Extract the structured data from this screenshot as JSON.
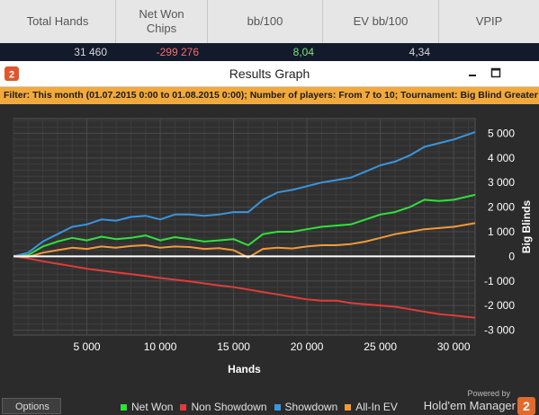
{
  "stats": {
    "headers": [
      {
        "label": "Total Hands"
      },
      {
        "label": "Net Won\nChips"
      },
      {
        "label": "bb/100"
      },
      {
        "label": "EV bb/100"
      },
      {
        "label": "VPIP"
      }
    ],
    "values": [
      {
        "text": "31 460",
        "color": "#d8d8d8"
      },
      {
        "text": "-299 276",
        "color": "#ff6a6a"
      },
      {
        "text": "8,04",
        "color": "#7fe07f"
      },
      {
        "text": "4,34",
        "color": "#d8d8d8"
      },
      {
        "text": "",
        "color": "#d8d8d8"
      }
    ]
  },
  "window": {
    "title": "Results Graph",
    "logo_icon": "holdem-manager-logo-icon",
    "minimize_icon": "minimize-icon",
    "maximize_icon": "maximize-icon"
  },
  "filter": {
    "label": "Filter:",
    "text": "This month (01.07.2015 0:00 to 01.08.2015 0:00); Number of players: From 7 to 10; Tournament: Big Blind Greater"
  },
  "chart_data": {
    "type": "line",
    "xlabel": "Hands",
    "ylabel": "Big Blinds",
    "xlim": [
      0,
      31460
    ],
    "ylim": [
      -3200,
      5600
    ],
    "x_ticks": [
      "5 000",
      "10 000",
      "15 000",
      "20 000",
      "25 000",
      "30 000"
    ],
    "x_tick_values": [
      5000,
      10000,
      15000,
      20000,
      25000,
      30000
    ],
    "y_ticks": [
      "5 000",
      "4 000",
      "3 000",
      "2 000",
      "1 000",
      "0",
      "-1 000",
      "-2 000",
      "-3 000"
    ],
    "y_tick_values": [
      5000,
      4000,
      3000,
      2000,
      1000,
      0,
      -1000,
      -2000,
      -3000
    ],
    "grid": true,
    "legend_position": "bottom",
    "series": [
      {
        "name": "Net Won",
        "color": "#2ee33a",
        "x": [
          0,
          1000,
          2000,
          3000,
          4000,
          5000,
          6000,
          7000,
          8000,
          9000,
          10000,
          11000,
          12000,
          13000,
          14000,
          15000,
          16000,
          17000,
          18000,
          19000,
          20000,
          21000,
          22000,
          23000,
          24000,
          25000,
          26000,
          27000,
          28000,
          29000,
          30000,
          31460
        ],
        "y": [
          0,
          50,
          400,
          600,
          750,
          650,
          800,
          700,
          750,
          850,
          650,
          780,
          700,
          600,
          650,
          700,
          450,
          900,
          1000,
          1000,
          1100,
          1200,
          1250,
          1300,
          1500,
          1700,
          1800,
          2000,
          2300,
          2250,
          2300,
          2500
        ]
      },
      {
        "name": "Non Showdown",
        "color": "#e23b3b",
        "x": [
          0,
          1000,
          2000,
          3000,
          4000,
          5000,
          6000,
          7000,
          8000,
          9000,
          10000,
          11000,
          12000,
          13000,
          14000,
          15000,
          16000,
          17000,
          18000,
          19000,
          20000,
          21000,
          22000,
          23000,
          24000,
          25000,
          26000,
          27000,
          28000,
          29000,
          30000,
          31460
        ],
        "y": [
          0,
          -80,
          -200,
          -300,
          -400,
          -500,
          -580,
          -650,
          -720,
          -800,
          -880,
          -950,
          -1020,
          -1100,
          -1180,
          -1250,
          -1350,
          -1450,
          -1550,
          -1650,
          -1750,
          -1800,
          -1800,
          -1900,
          -1950,
          -2000,
          -2050,
          -2150,
          -2250,
          -2350,
          -2400,
          -2500
        ]
      },
      {
        "name": "Showdown",
        "color": "#3a95e0",
        "x": [
          0,
          1000,
          2000,
          3000,
          4000,
          5000,
          6000,
          7000,
          8000,
          9000,
          10000,
          11000,
          12000,
          13000,
          14000,
          15000,
          16000,
          17000,
          18000,
          19000,
          20000,
          21000,
          22000,
          23000,
          24000,
          25000,
          26000,
          27000,
          28000,
          29000,
          30000,
          31460
        ],
        "y": [
          0,
          150,
          600,
          900,
          1200,
          1300,
          1500,
          1450,
          1600,
          1650,
          1500,
          1700,
          1700,
          1650,
          1700,
          1800,
          1800,
          2300,
          2600,
          2700,
          2850,
          3000,
          3100,
          3200,
          3450,
          3700,
          3850,
          4100,
          4450,
          4600,
          4750,
          5050
        ]
      },
      {
        "name": "All-In EV",
        "color": "#f29a3a",
        "x": [
          0,
          1000,
          2000,
          3000,
          4000,
          5000,
          6000,
          7000,
          8000,
          9000,
          10000,
          11000,
          12000,
          13000,
          14000,
          15000,
          16000,
          17000,
          18000,
          19000,
          20000,
          21000,
          22000,
          23000,
          24000,
          25000,
          26000,
          27000,
          28000,
          29000,
          30000,
          31460
        ],
        "y": [
          0,
          -20,
          150,
          250,
          350,
          300,
          400,
          350,
          420,
          450,
          350,
          400,
          380,
          300,
          330,
          250,
          -50,
          300,
          350,
          320,
          400,
          450,
          450,
          500,
          600,
          750,
          900,
          1000,
          1100,
          1150,
          1200,
          1350
        ]
      },
      {
        "name": "",
        "color": "#ffffff",
        "x": [
          0,
          31460
        ],
        "y": [
          0,
          0
        ]
      }
    ]
  },
  "footer": {
    "options_label": "Options",
    "powered_by": "Powered by",
    "brand": "Hold'em Manager",
    "brand_logo": "2"
  }
}
